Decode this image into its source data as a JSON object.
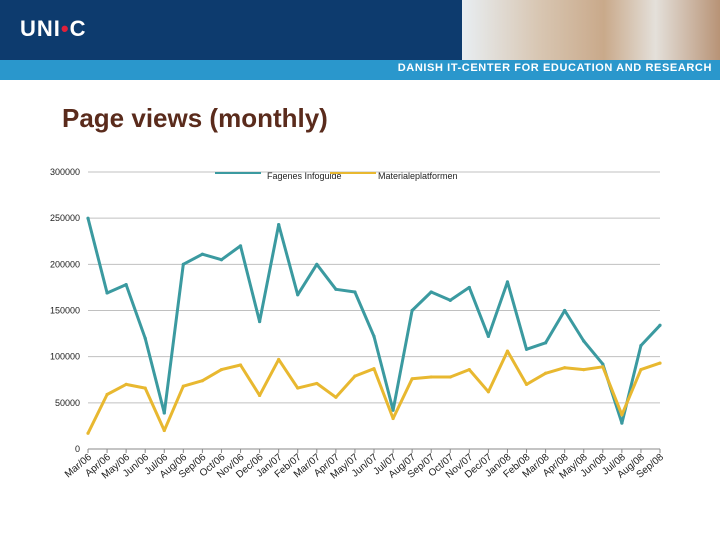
{
  "header": {
    "logo_text": "UNI•C",
    "tagline": "DANISH IT-CENTER FOR EDUCATION AND RESEARCH",
    "brand_color": "#0d3b6e",
    "band_color": "#2a97cc"
  },
  "page": {
    "title": "Page views (monthly)"
  },
  "chart_data": {
    "type": "line",
    "title": "Page views (monthly)",
    "xlabel": "",
    "ylabel": "",
    "ylim": [
      0,
      300000
    ],
    "yticks": [
      0,
      50000,
      100000,
      150000,
      200000,
      250000,
      300000
    ],
    "ytick_labels": [
      "0",
      "50000",
      "100000",
      "150000",
      "200000",
      "250000",
      "300000"
    ],
    "grid": true,
    "legend_position": "top",
    "categories": [
      "Mar/06",
      "Apr/06",
      "May/06",
      "Jun/06",
      "Jul/06",
      "Aug/06",
      "Sep/06",
      "Oct/06",
      "Nov/06",
      "Dec/06",
      "Jan/07",
      "Feb/07",
      "Mar/07",
      "Apr/07",
      "May/07",
      "Jun/07",
      "Jul/07",
      "Aug/07",
      "Sep/07",
      "Oct/07",
      "Nov/07",
      "Dec/07",
      "Jan/08",
      "Feb/08",
      "Mar/08",
      "Apr/08",
      "May/08",
      "Jun/08",
      "Jul/08",
      "Aug/08",
      "Sep/08"
    ],
    "series": [
      {
        "name": "Fagenes Infoguide",
        "color": "#3b9aa0",
        "values": [
          250000,
          169000,
          178000,
          120000,
          39000,
          200000,
          211000,
          205000,
          220000,
          138000,
          243000,
          167000,
          200000,
          173000,
          170000,
          122000,
          42000,
          150000,
          170000,
          161000,
          175000,
          122000,
          181000,
          108000,
          115000,
          150000,
          117000,
          92000,
          28000,
          112000,
          134000
        ]
      },
      {
        "name": "Materialeplatformen",
        "color": "#e8b830",
        "values": [
          17000,
          59000,
          70000,
          66000,
          20000,
          68000,
          74000,
          86000,
          91000,
          58000,
          97000,
          66000,
          71000,
          56000,
          79000,
          87000,
          33000,
          76000,
          78000,
          78000,
          86000,
          62000,
          106000,
          70000,
          82000,
          88000,
          86000,
          89000,
          37000,
          86000,
          93000
        ]
      }
    ]
  }
}
